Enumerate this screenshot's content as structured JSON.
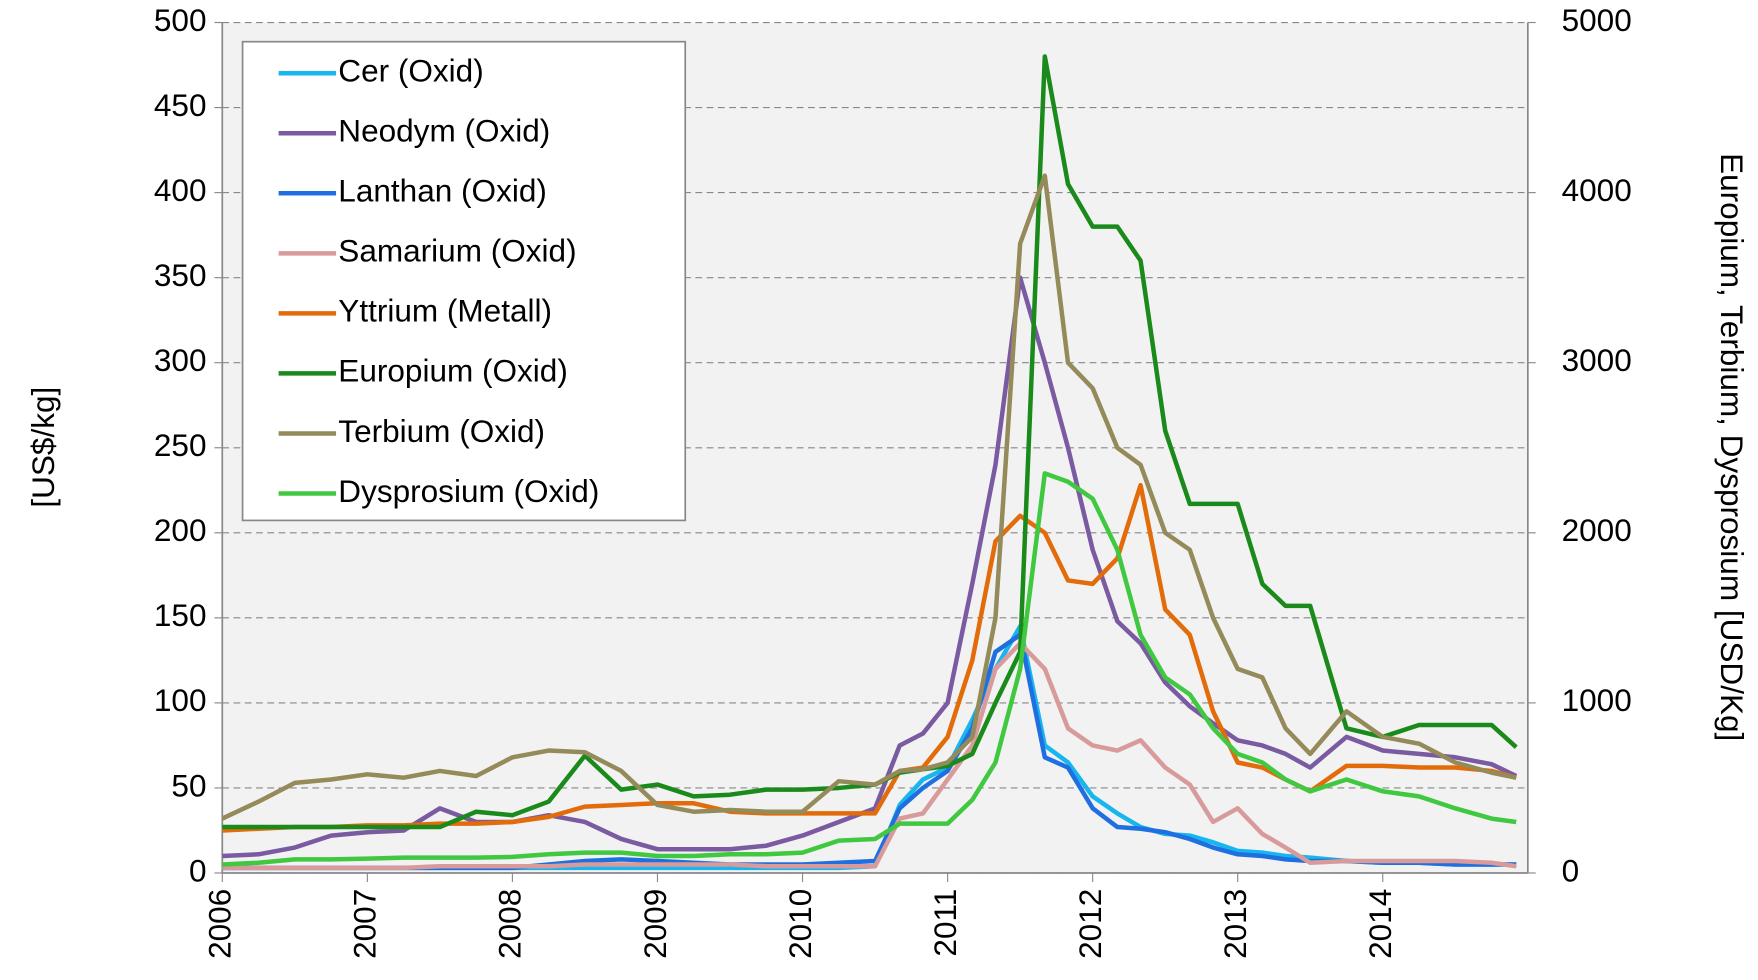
{
  "chart_data": {
    "type": "line",
    "ylabel": "[US$/kg]",
    "y2label": "Europium, Terbium, Dysprosium [USD/Kg]",
    "x": [
      2006,
      2006.25,
      2006.5,
      2006.75,
      2007,
      2007.25,
      2007.5,
      2007.75,
      2008,
      2008.25,
      2008.5,
      2008.75,
      2009,
      2009.25,
      2009.5,
      2009.75,
      2010,
      2010.25,
      2010.5,
      2010.67,
      2010.83,
      2011,
      2011.17,
      2011.33,
      2011.5,
      2011.67,
      2011.83,
      2012,
      2012.17,
      2012.33,
      2012.5,
      2012.67,
      2012.83,
      2013,
      2013.17,
      2013.33,
      2013.5,
      2013.75,
      2014,
      2014.25,
      2014.5,
      2014.75,
      2014.92
    ],
    "xlim": [
      2006,
      2015
    ],
    "xticks": [
      2006,
      2007,
      2008,
      2009,
      2010,
      2011,
      2012,
      2013,
      2014
    ],
    "ylim": [
      0,
      500
    ],
    "yticks": [
      0,
      50,
      100,
      150,
      200,
      250,
      300,
      350,
      400,
      450,
      500
    ],
    "y2lim": [
      0,
      5000
    ],
    "y2ticks": [
      0,
      1000,
      2000,
      3000,
      4000,
      5000
    ],
    "grid": true,
    "legend": "upper left",
    "series": [
      {
        "name": "Cer (Oxid)",
        "color": "#17b6ee",
        "values": [
          3,
          3,
          3,
          3,
          3,
          3,
          3,
          3,
          3,
          3,
          3,
          3,
          3,
          3,
          3,
          3,
          3,
          3,
          4,
          40,
          55,
          62,
          90,
          120,
          145,
          75,
          65,
          45,
          35,
          27,
          23,
          22,
          18,
          13,
          12,
          10,
          9,
          7,
          6,
          6,
          5,
          5,
          5
        ]
      },
      {
        "name": "Neodym (Oxid)",
        "color": "#7a5aa0",
        "values": [
          10,
          11,
          15,
          22,
          24,
          25,
          38,
          30,
          30,
          34,
          30,
          20,
          14,
          14,
          14,
          16,
          22,
          30,
          38,
          75,
          82,
          100,
          170,
          240,
          350,
          300,
          250,
          190,
          148,
          135,
          112,
          98,
          88,
          78,
          75,
          70,
          62,
          80,
          72,
          70,
          68,
          64,
          57
        ]
      },
      {
        "name": "Lanthan (Oxid)",
        "color": "#1f6fe0",
        "values": [
          3,
          3,
          3,
          3,
          3,
          3,
          3,
          3,
          3,
          5,
          7,
          8,
          7,
          6,
          5,
          5,
          5,
          6,
          7,
          38,
          50,
          60,
          85,
          130,
          140,
          68,
          62,
          38,
          27,
          26,
          24,
          20,
          15,
          11,
          10,
          8,
          7,
          7,
          6,
          6,
          5,
          5,
          5
        ]
      },
      {
        "name": "Samarium (Oxid)",
        "color": "#d89a9a",
        "values": [
          3,
          3,
          3,
          3,
          3,
          3,
          4,
          4,
          4,
          4,
          5,
          5,
          5,
          5,
          5,
          4,
          4,
          4,
          4,
          32,
          35,
          55,
          75,
          120,
          135,
          120,
          85,
          75,
          72,
          78,
          62,
          52,
          30,
          38,
          23,
          15,
          6,
          7,
          7,
          7,
          7,
          6,
          4
        ]
      },
      {
        "name": "Yttrium (Metall)",
        "color": "#e26b0a",
        "values": [
          25,
          26,
          27,
          27,
          28,
          28,
          29,
          29,
          30,
          33,
          39,
          40,
          41,
          41,
          36,
          35,
          35,
          35,
          35,
          60,
          62,
          80,
          125,
          195,
          210,
          200,
          172,
          170,
          185,
          228,
          155,
          140,
          95,
          65,
          62,
          55,
          48,
          63,
          63,
          62,
          62,
          60,
          56
        ]
      },
      {
        "name": "Europium (Oxid)",
        "color": "#1a8a1a",
        "axis": "y2",
        "values": [
          270,
          270,
          270,
          270,
          270,
          270,
          270,
          360,
          340,
          420,
          690,
          490,
          520,
          450,
          460,
          490,
          490,
          500,
          520,
          590,
          610,
          630,
          700,
          1000,
          1300,
          4800,
          4050,
          3800,
          3800,
          3600,
          2600,
          2170,
          2170,
          2170,
          1700,
          1570,
          1570,
          850,
          800,
          870,
          870,
          870,
          740
        ]
      },
      {
        "name": "Terbium (Oxid)",
        "color": "#948a5a",
        "axis": "y2",
        "values": [
          320,
          420,
          530,
          550,
          580,
          560,
          600,
          570,
          680,
          720,
          710,
          600,
          400,
          360,
          370,
          360,
          360,
          540,
          520,
          600,
          610,
          650,
          800,
          1500,
          3700,
          4100,
          3000,
          2850,
          2500,
          2400,
          2000,
          1900,
          1500,
          1200,
          1150,
          850,
          700,
          950,
          800,
          760,
          650,
          590,
          560
        ]
      },
      {
        "name": "Dysprosium (Oxid)",
        "color": "#40c840",
        "axis": "y2",
        "values": [
          50,
          60,
          80,
          80,
          85,
          90,
          90,
          90,
          95,
          110,
          120,
          120,
          100,
          100,
          110,
          110,
          120,
          190,
          200,
          290,
          290,
          290,
          430,
          650,
          1200,
          2350,
          2300,
          2200,
          1900,
          1400,
          1150,
          1050,
          850,
          700,
          650,
          550,
          480,
          550,
          480,
          450,
          380,
          320,
          300
        ]
      }
    ]
  }
}
